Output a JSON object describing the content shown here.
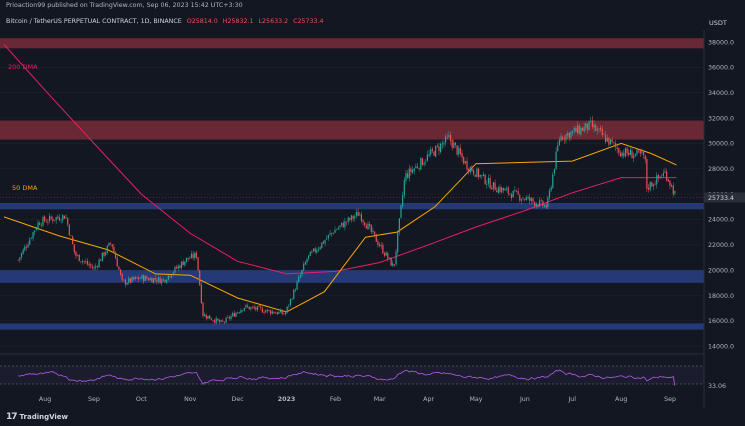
{
  "header": {
    "instrument": "Bitcoin / TetherUS PERPETUAL CONTRACT, 1D, BINANCE",
    "o": "O25814.0",
    "h": "H25832.1",
    "l": "L25633.2",
    "c": "C25733.4",
    "currency": "USDT",
    "published_by": "Prioaction99 published on TradingView.com, Sep 06, 2023 15:42 UTC+3:30"
  },
  "brand": {
    "name": "TradingView"
  },
  "labels": {
    "dma200": "200 DMA",
    "dma50": "50 DMA",
    "rsi_value": "33.06"
  },
  "last_price": "25733.4",
  "colors": {
    "background": "#131722",
    "resistance_zone": "#7a2a37",
    "support_zone": "#2a3f86",
    "up_candle": "#26a69a",
    "down_candle": "#ef5350",
    "dma200": "#e91e63",
    "dma50": "#f7a600",
    "rsi": "#b45be8"
  },
  "chart_data": {
    "type": "candlestick",
    "y_axis_ticks": [
      "38000.0",
      "36000.0",
      "34000.0",
      "32000.0",
      "30000.0",
      "28000.0",
      "26000.0",
      "24000.0",
      "22000.0",
      "20000.0",
      "18000.0",
      "16000.0",
      "14000.0"
    ],
    "ylim": [
      13000,
      38600
    ],
    "x_axis_labels": [
      "Aug",
      "Sep",
      "Oct",
      "Nov",
      "Dec",
      "2023",
      "Feb",
      "Mar",
      "Apr",
      "May",
      "Jun",
      "Jul",
      "Aug",
      "Sep"
    ],
    "zones": [
      {
        "type": "resistance",
        "from": 37500,
        "to": 38300
      },
      {
        "type": "resistance",
        "from": 30300,
        "to": 31800
      },
      {
        "type": "support",
        "from": 24800,
        "to": 25300
      },
      {
        "type": "support",
        "from": 19000,
        "to": 20000
      },
      {
        "type": "support",
        "from": 15300,
        "to": 15800
      }
    ],
    "price_path": [
      [
        "2022-07-15",
        20800
      ],
      [
        "2022-07-28",
        23800
      ],
      [
        "2022-08-14",
        24300
      ],
      [
        "2022-08-20",
        21200
      ],
      [
        "2022-09-01",
        20100
      ],
      [
        "2022-09-12",
        22200
      ],
      [
        "2022-09-19",
        19000
      ],
      [
        "2022-10-01",
        19400
      ],
      [
        "2022-10-15",
        19200
      ],
      [
        "2022-10-29",
        20800
      ],
      [
        "2022-11-05",
        21200
      ],
      [
        "2022-11-09",
        16500
      ],
      [
        "2022-11-21",
        15800
      ],
      [
        "2022-12-05",
        17100
      ],
      [
        "2022-12-31",
        16550
      ],
      [
        "2023-01-14",
        20900
      ],
      [
        "2023-01-31",
        23100
      ],
      [
        "2023-02-16",
        24500
      ],
      [
        "2023-03-10",
        20200
      ],
      [
        "2023-03-17",
        27400
      ],
      [
        "2023-04-14",
        30400
      ],
      [
        "2023-04-25",
        28300
      ],
      [
        "2023-05-12",
        26600
      ],
      [
        "2023-06-15",
        25000
      ],
      [
        "2023-06-23",
        30500
      ],
      [
        "2023-07-13",
        31400
      ],
      [
        "2023-08-01",
        29300
      ],
      [
        "2023-08-16",
        29000
      ],
      [
        "2023-08-17",
        26500
      ],
      [
        "2023-08-29",
        27700
      ],
      [
        "2023-09-05",
        25733
      ]
    ],
    "dma200_path": [
      [
        "2022-07-06",
        37800
      ],
      [
        "2022-08-01",
        34200
      ],
      [
        "2022-09-01",
        30000
      ],
      [
        "2022-10-01",
        26000
      ],
      [
        "2022-11-01",
        22900
      ],
      [
        "2022-12-01",
        20700
      ],
      [
        "2023-01-01",
        19700
      ],
      [
        "2023-02-01",
        19900
      ],
      [
        "2023-03-01",
        20600
      ],
      [
        "2023-04-01",
        22000
      ],
      [
        "2023-05-01",
        23400
      ],
      [
        "2023-06-01",
        24700
      ],
      [
        "2023-07-01",
        26100
      ],
      [
        "2023-08-01",
        27300
      ],
      [
        "2023-09-05",
        27300
      ]
    ],
    "dma50_path": [
      [
        "2022-07-06",
        24200
      ],
      [
        "2022-08-10",
        22700
      ],
      [
        "2022-09-10",
        21600
      ],
      [
        "2022-10-10",
        19700
      ],
      [
        "2022-11-01",
        19600
      ],
      [
        "2022-12-01",
        17800
      ],
      [
        "2023-01-01",
        16700
      ],
      [
        "2023-01-25",
        18300
      ],
      [
        "2023-02-20",
        22600
      ],
      [
        "2023-03-12",
        23000
      ],
      [
        "2023-04-05",
        25000
      ],
      [
        "2023-05-01",
        28400
      ],
      [
        "2023-06-01",
        28500
      ],
      [
        "2023-07-01",
        28600
      ],
      [
        "2023-08-01",
        30000
      ],
      [
        "2023-08-20",
        29200
      ],
      [
        "2023-09-05",
        28300
      ]
    ],
    "rsi": {
      "value": 33.06,
      "level": 33.06
    }
  }
}
